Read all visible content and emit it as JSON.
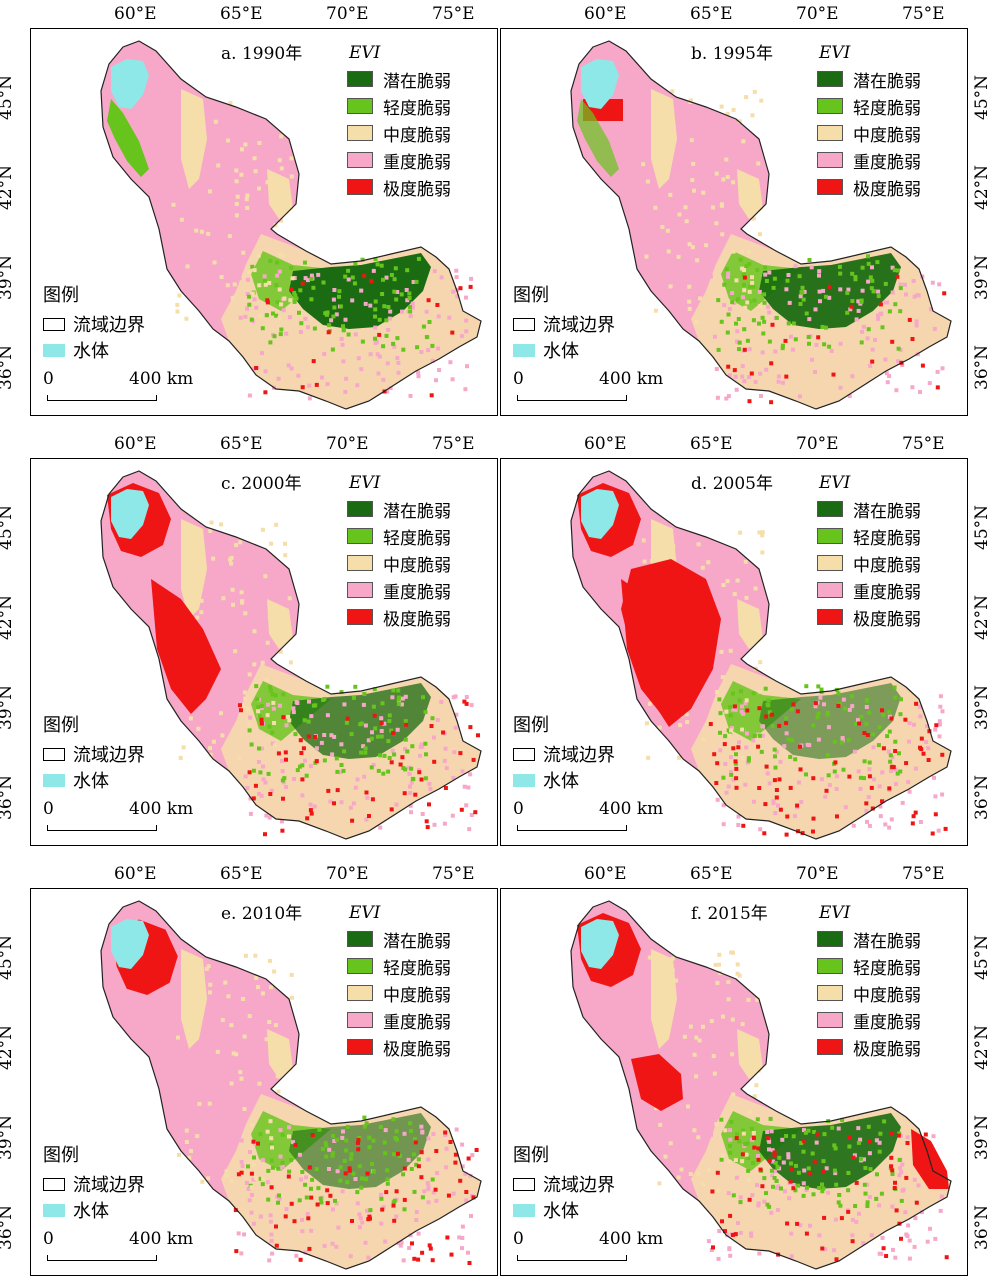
{
  "lon_labels": [
    "60°E",
    "65°E",
    "70°E",
    "75°E"
  ],
  "lat_labels": [
    "45°N",
    "42°N",
    "39°N",
    "36°N"
  ],
  "legend_heading": "EVI",
  "classes": [
    {
      "label": "潜在脆弱",
      "color": "#1a6b12"
    },
    {
      "label": "轻度脆弱",
      "color": "#66c41c"
    },
    {
      "label": "中度脆弱",
      "color": "#f5deaa"
    },
    {
      "label": "重度脆弱",
      "color": "#f7a8c9"
    },
    {
      "label": "极度脆弱",
      "color": "#f01515"
    }
  ],
  "map_legend": {
    "title": "图例",
    "boundary_label": "流域边界",
    "water_label": "水体",
    "water_color": "#8ee8e8"
  },
  "scale": {
    "zero": "0",
    "distance": "400 km"
  },
  "panels": [
    {
      "title": "a. 1990年"
    },
    {
      "title": "b. 1995年"
    },
    {
      "title": "c. 2000年"
    },
    {
      "title": "d. 2005年"
    },
    {
      "title": "e. 2010年"
    },
    {
      "title": "f. 2015年"
    }
  ]
}
